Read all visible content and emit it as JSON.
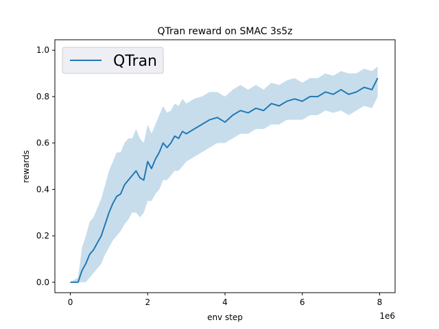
{
  "chart_data": {
    "type": "line",
    "title": "QTran reward on SMAC 3s5z",
    "xlabel": "env step",
    "ylabel": "rewards",
    "x_offset_label": "1e6",
    "xlim": [
      -0.4,
      8.4
    ],
    "ylim": [
      -0.045,
      1.045
    ],
    "xticks": [
      0,
      2,
      4,
      6,
      8
    ],
    "xtick_labels": [
      "0",
      "2",
      "4",
      "6",
      "8"
    ],
    "yticks": [
      0.0,
      0.2,
      0.4,
      0.6,
      0.8,
      1.0
    ],
    "ytick_labels": [
      "0.0",
      "0.2",
      "0.4",
      "0.6",
      "0.8",
      "1.0"
    ],
    "grid": false,
    "legend": {
      "position": "top-left",
      "entries": [
        "QTran"
      ]
    },
    "colors": {
      "line": "#1f77b4",
      "band": "#1f77b4"
    },
    "series": [
      {
        "name": "QTran",
        "x": [
          0,
          0.2,
          0.3,
          0.4,
          0.5,
          0.6,
          0.7,
          0.8,
          0.9,
          1.0,
          1.1,
          1.2,
          1.3,
          1.4,
          1.5,
          1.6,
          1.7,
          1.8,
          1.9,
          2.0,
          2.1,
          2.2,
          2.3,
          2.4,
          2.5,
          2.6,
          2.7,
          2.8,
          2.9,
          3.0,
          3.2,
          3.4,
          3.6,
          3.8,
          4.0,
          4.2,
          4.4,
          4.6,
          4.8,
          5.0,
          5.2,
          5.4,
          5.6,
          5.8,
          6.0,
          6.2,
          6.4,
          6.6,
          6.8,
          7.0,
          7.2,
          7.4,
          7.6,
          7.8,
          7.95
        ],
        "mean": [
          0.0,
          0.0,
          0.05,
          0.08,
          0.12,
          0.14,
          0.17,
          0.2,
          0.25,
          0.3,
          0.34,
          0.37,
          0.38,
          0.42,
          0.44,
          0.46,
          0.48,
          0.45,
          0.44,
          0.52,
          0.49,
          0.53,
          0.56,
          0.6,
          0.58,
          0.6,
          0.63,
          0.62,
          0.65,
          0.64,
          0.66,
          0.68,
          0.7,
          0.71,
          0.69,
          0.72,
          0.74,
          0.73,
          0.75,
          0.74,
          0.77,
          0.76,
          0.78,
          0.79,
          0.78,
          0.8,
          0.8,
          0.82,
          0.81,
          0.83,
          0.81,
          0.82,
          0.84,
          0.83,
          0.88
        ],
        "lower": [
          0.0,
          0.0,
          0.0,
          0.0,
          0.02,
          0.04,
          0.06,
          0.08,
          0.12,
          0.15,
          0.18,
          0.2,
          0.22,
          0.25,
          0.27,
          0.3,
          0.3,
          0.28,
          0.3,
          0.35,
          0.35,
          0.38,
          0.4,
          0.44,
          0.44,
          0.46,
          0.48,
          0.48,
          0.5,
          0.52,
          0.54,
          0.56,
          0.58,
          0.6,
          0.6,
          0.62,
          0.64,
          0.64,
          0.66,
          0.66,
          0.68,
          0.68,
          0.7,
          0.7,
          0.7,
          0.72,
          0.72,
          0.74,
          0.73,
          0.74,
          0.72,
          0.74,
          0.76,
          0.75,
          0.8
        ],
        "upper": [
          0.0,
          0.02,
          0.15,
          0.2,
          0.26,
          0.28,
          0.32,
          0.36,
          0.42,
          0.48,
          0.52,
          0.56,
          0.56,
          0.6,
          0.62,
          0.62,
          0.66,
          0.62,
          0.6,
          0.68,
          0.64,
          0.68,
          0.72,
          0.76,
          0.73,
          0.74,
          0.77,
          0.76,
          0.79,
          0.77,
          0.79,
          0.8,
          0.82,
          0.82,
          0.8,
          0.83,
          0.85,
          0.83,
          0.85,
          0.83,
          0.86,
          0.85,
          0.87,
          0.88,
          0.86,
          0.88,
          0.88,
          0.9,
          0.89,
          0.91,
          0.9,
          0.9,
          0.92,
          0.91,
          0.93
        ]
      }
    ]
  }
}
